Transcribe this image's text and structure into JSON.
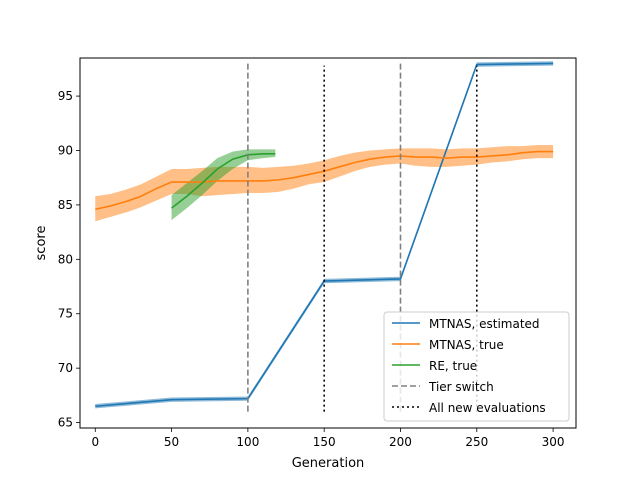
{
  "chart_data": {
    "type": "line",
    "title": "",
    "xlabel": "Generation",
    "ylabel": "score",
    "xlim": [
      -10,
      315
    ],
    "ylim": [
      64.5,
      98.5
    ],
    "xticks": [
      0,
      50,
      100,
      150,
      200,
      250,
      300
    ],
    "yticks": [
      65,
      70,
      75,
      80,
      85,
      90,
      95
    ],
    "grid": false,
    "legend_position": "lower-right",
    "series": [
      {
        "name": "MTNAS, estimated",
        "color": "#1f77b4",
        "x": [
          0,
          25,
          50,
          100,
          150,
          200,
          250,
          300
        ],
        "y": [
          66.5,
          66.8,
          67.1,
          67.2,
          78.0,
          78.2,
          97.9,
          98.0
        ],
        "band_width": 0.2
      },
      {
        "name": "MTNAS, true",
        "color": "#ff7f0e",
        "x": [
          0,
          10,
          20,
          30,
          40,
          50,
          60,
          70,
          80,
          90,
          100,
          110,
          120,
          130,
          140,
          150,
          160,
          170,
          180,
          190,
          200,
          210,
          220,
          230,
          240,
          250,
          260,
          270,
          280,
          290,
          300
        ],
        "y": [
          84.6,
          84.9,
          85.3,
          85.8,
          86.5,
          87.1,
          87.1,
          87.1,
          87.2,
          87.2,
          87.2,
          87.2,
          87.3,
          87.5,
          87.8,
          88.1,
          88.5,
          88.9,
          89.2,
          89.4,
          89.5,
          89.4,
          89.4,
          89.3,
          89.4,
          89.4,
          89.5,
          89.6,
          89.8,
          89.9,
          89.9
        ],
        "lower": [
          83.5,
          83.9,
          84.3,
          84.8,
          85.4,
          86.0,
          86.0,
          85.8,
          85.9,
          86.0,
          86.1,
          86.1,
          86.2,
          86.5,
          86.9,
          87.1,
          87.6,
          88.1,
          88.5,
          88.7,
          88.8,
          88.6,
          88.5,
          88.5,
          88.6,
          88.7,
          88.9,
          89.0,
          89.2,
          89.3,
          89.3
        ],
        "upper": [
          85.8,
          86.0,
          86.4,
          86.9,
          87.6,
          88.3,
          88.3,
          88.4,
          88.5,
          88.5,
          88.5,
          88.4,
          88.5,
          88.6,
          88.8,
          89.1,
          89.5,
          89.8,
          90.0,
          90.1,
          90.2,
          90.2,
          90.2,
          90.1,
          90.2,
          90.2,
          90.3,
          90.4,
          90.4,
          90.5,
          90.5
        ]
      },
      {
        "name": "RE, true",
        "color": "#2ca02c",
        "x": [
          50,
          60,
          70,
          80,
          90,
          100,
          110,
          118
        ],
        "y": [
          84.7,
          85.8,
          87.0,
          88.3,
          89.2,
          89.6,
          89.7,
          89.7
        ],
        "lower": [
          83.6,
          84.7,
          85.9,
          87.2,
          88.3,
          89.1,
          89.3,
          89.4
        ],
        "upper": [
          85.9,
          87.0,
          88.1,
          89.3,
          89.9,
          90.1,
          90.1,
          90.1
        ]
      }
    ],
    "vlines": [
      {
        "x": 100,
        "series": "Tier switch",
        "style": "dashed",
        "color": "#808080",
        "y_range": [
          66,
          98.2
        ]
      },
      {
        "x": 150,
        "series": "All new evaluations",
        "style": "dotted",
        "color": "#000000",
        "y_range": [
          66,
          97.8
        ]
      },
      {
        "x": 200,
        "series": "Tier switch",
        "style": "dashed",
        "color": "#808080",
        "y_range": [
          66,
          98.2
        ]
      },
      {
        "x": 250,
        "series": "All new evaluations",
        "style": "dotted",
        "color": "#000000",
        "y_range": [
          66,
          97.8
        ]
      }
    ],
    "legend": [
      {
        "label": "MTNAS, estimated",
        "color": "#1f77b4",
        "style": "solid"
      },
      {
        "label": "MTNAS, true",
        "color": "#ff7f0e",
        "style": "solid"
      },
      {
        "label": "RE, true",
        "color": "#2ca02c",
        "style": "solid"
      },
      {
        "label": "Tier switch",
        "color": "#808080",
        "style": "dashed"
      },
      {
        "label": "All new evaluations",
        "color": "#000000",
        "style": "dotted"
      }
    ]
  }
}
